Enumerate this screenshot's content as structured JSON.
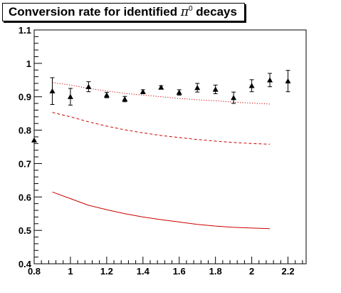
{
  "chart_data": {
    "type": "scatter",
    "title": "Conversion rate for identified π⁰ decays",
    "title_parts": {
      "text": "Conversion rate for identified ",
      "symbol": "π",
      "superscript": "0",
      "suffix": " decays"
    },
    "xlabel": "",
    "ylabel": "",
    "xlim": [
      0.8,
      2.3
    ],
    "ylim": [
      0.4,
      1.1
    ],
    "x_ticks": [
      0.8,
      1,
      1.2,
      1.4,
      1.6,
      1.8,
      2,
      2.2
    ],
    "x_tick_labels": [
      "0.8",
      "1",
      "1.2",
      "1.4",
      "1.6",
      "1.8",
      "2",
      "2.2"
    ],
    "y_ticks": [
      0.4,
      0.5,
      0.6,
      0.7,
      0.8,
      0.9,
      1,
      1.1
    ],
    "y_tick_labels": [
      "0.4",
      "0.5",
      "0.6",
      "0.7",
      "0.8",
      "0.9",
      "1",
      "1.1"
    ],
    "grid": false,
    "legend": "none",
    "colors": {
      "markers": "#000000",
      "curves": "#cc0000",
      "frame": "#000000"
    },
    "series": [
      {
        "kind": "points-with-errors",
        "marker": "triangle",
        "x": [
          0.8,
          0.9,
          1.0,
          1.1,
          1.2,
          1.3,
          1.4,
          1.5,
          1.6,
          1.7,
          1.8,
          1.9,
          2.0,
          2.1,
          2.2
        ],
        "y": [
          0.77,
          0.917,
          0.9,
          0.93,
          0.905,
          0.893,
          0.915,
          0.928,
          0.913,
          0.927,
          0.922,
          0.897,
          0.933,
          0.95,
          0.947
        ],
        "err": [
          0.0,
          0.04,
          0.025,
          0.015,
          0.008,
          0.008,
          0.006,
          0.005,
          0.008,
          0.013,
          0.013,
          0.017,
          0.018,
          0.02,
          0.032
        ]
      },
      {
        "kind": "curve",
        "style": "dotted",
        "x": [
          0.9,
          1.0,
          1.1,
          1.2,
          1.3,
          1.4,
          1.5,
          1.6,
          1.7,
          1.8,
          1.9,
          2.0,
          2.1
        ],
        "y": [
          0.943,
          0.935,
          0.925,
          0.917,
          0.91,
          0.905,
          0.9,
          0.895,
          0.891,
          0.888,
          0.884,
          0.881,
          0.878
        ]
      },
      {
        "kind": "curve",
        "style": "dashed",
        "x": [
          0.9,
          1.0,
          1.1,
          1.2,
          1.3,
          1.4,
          1.5,
          1.6,
          1.7,
          1.8,
          1.9,
          2.0,
          2.1
        ],
        "y": [
          0.853,
          0.84,
          0.825,
          0.812,
          0.801,
          0.792,
          0.784,
          0.778,
          0.772,
          0.767,
          0.763,
          0.76,
          0.758
        ]
      },
      {
        "kind": "curve",
        "style": "solid",
        "x": [
          0.9,
          1.0,
          1.1,
          1.2,
          1.3,
          1.4,
          1.5,
          1.6,
          1.7,
          1.8,
          1.9,
          2.0,
          2.1
        ],
        "y": [
          0.615,
          0.595,
          0.575,
          0.562,
          0.55,
          0.54,
          0.532,
          0.525,
          0.518,
          0.513,
          0.509,
          0.507,
          0.505
        ]
      }
    ]
  }
}
